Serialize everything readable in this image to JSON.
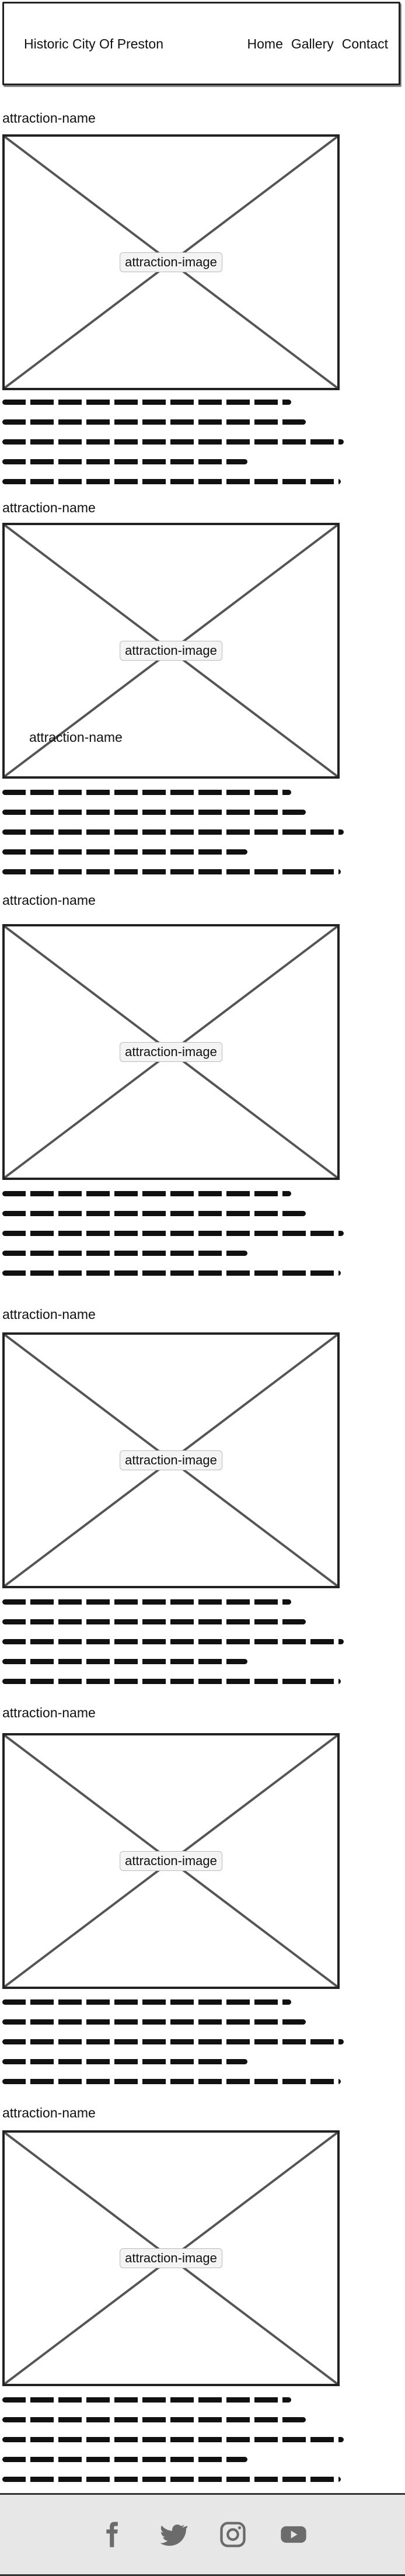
{
  "header": {
    "title": "Historic City Of Preston",
    "nav": [
      "Home",
      "Gallery",
      "Contact"
    ]
  },
  "attractions": [
    {
      "name": "attraction-name",
      "image_label": "attraction-image"
    },
    {
      "name": "attraction-name",
      "image_label": "attraction-image",
      "overlay_label": "attraction-name"
    },
    {
      "name": "attraction-name",
      "image_label": "attraction-image"
    },
    {
      "name": "attraction-name",
      "image_label": "attraction-image"
    },
    {
      "name": "attraction-name",
      "image_label": "attraction-image"
    },
    {
      "name": "attraction-name",
      "image_label": "attraction-image"
    }
  ],
  "footer": {
    "social_icons": [
      "facebook-icon",
      "twitter-icon",
      "instagram-icon",
      "youtube-icon"
    ]
  }
}
